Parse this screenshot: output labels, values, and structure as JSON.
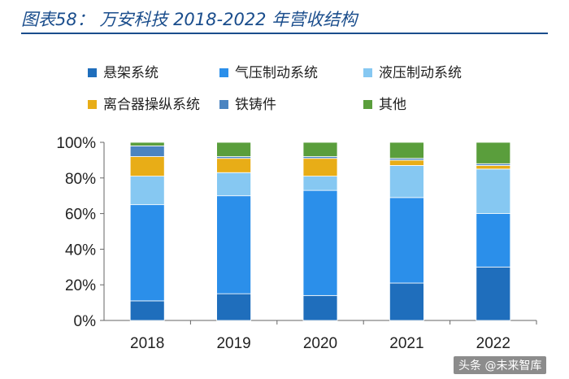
{
  "title": "图表58：  万安科技 2018-2022 年营收结构",
  "watermark": "头条 @未来智库",
  "colors": {
    "title": "#1a4d8c",
    "series": [
      "#1f6ebc",
      "#2b8fea",
      "#86c8f2",
      "#e8ad17",
      "#4a84c1",
      "#5a9e3c"
    ]
  },
  "chart_data": {
    "type": "bar",
    "stacked": true,
    "categories": [
      "2018",
      "2019",
      "2020",
      "2021",
      "2022"
    ],
    "series": [
      {
        "name": "悬架系统",
        "values": [
          11,
          15,
          14,
          21,
          30
        ]
      },
      {
        "name": "气压制动系统",
        "values": [
          54,
          55,
          59,
          48,
          30
        ]
      },
      {
        "name": "液压制动系统",
        "values": [
          16,
          13,
          8,
          18,
          25
        ]
      },
      {
        "name": "离合器操纵系统",
        "values": [
          11,
          8,
          10,
          3,
          2
        ]
      },
      {
        "name": "铁铸件",
        "values": [
          6,
          1,
          1,
          1,
          1
        ]
      },
      {
        "name": "其他",
        "values": [
          2,
          8,
          8,
          9,
          12
        ]
      }
    ],
    "ylim": [
      0,
      100
    ],
    "yticks": [
      "0%",
      "20%",
      "40%",
      "60%",
      "80%",
      "100%"
    ],
    "xlabel": "",
    "ylabel": "",
    "legend_position": "top"
  }
}
